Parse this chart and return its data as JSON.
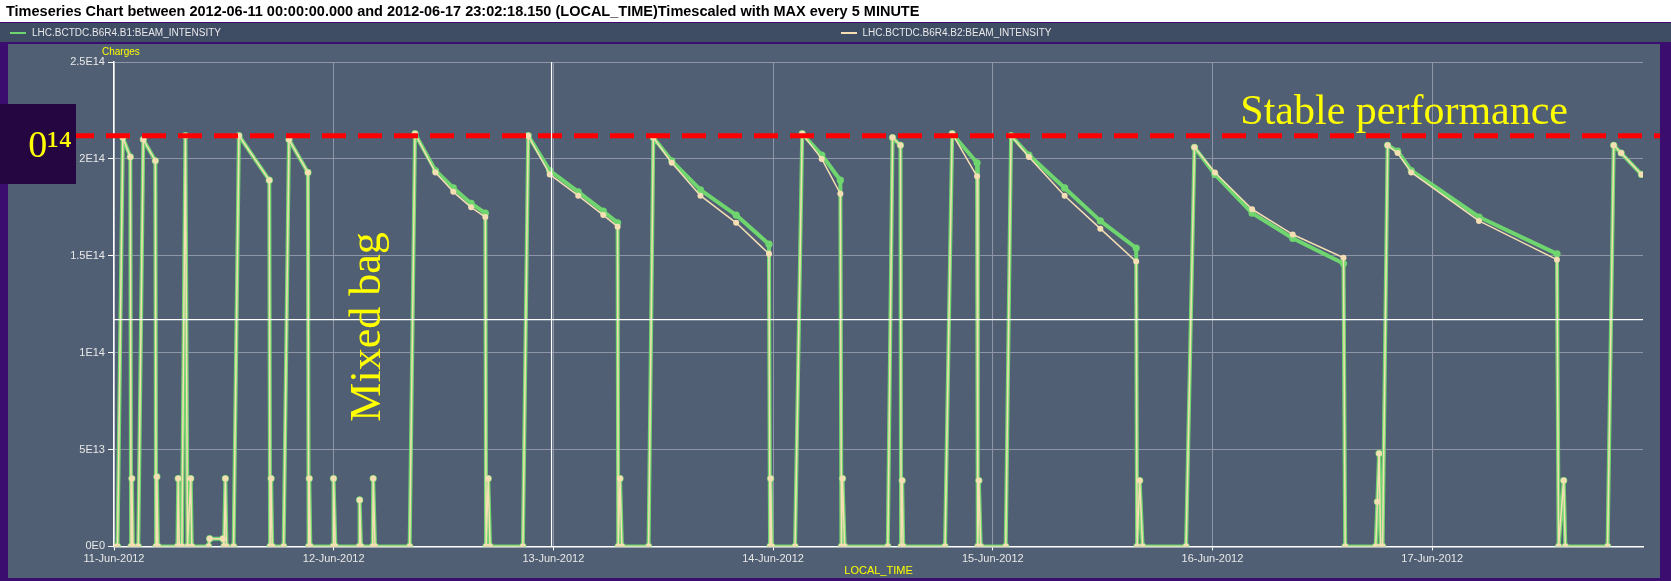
{
  "chart_data": {
    "type": "line",
    "title": "Timeseries Chart between 2012-06-11 00:00:00.000 and 2012-06-17 23:02:18.150 (LOCAL_TIME)Timescaled with MAX every 5 MINUTE",
    "xlabel": "LOCAL_TIME",
    "ylabel": "Charges",
    "x": [
      "2012-06-11T00:00",
      "2012-06-11T00:23",
      "2012-06-11T00:58",
      "2012-06-11T01:47",
      "2012-06-11T01:52",
      "2012-06-11T01:57",
      "2012-06-11T02:04",
      "2012-06-11T02:39",
      "2012-06-11T03:12",
      "2012-06-11T04:31",
      "2012-06-11T04:36",
      "2012-06-11T04:41",
      "2012-06-11T04:48",
      "2012-06-11T06:56",
      "2012-06-11T07:01",
      "2012-06-11T07:08",
      "2012-06-11T07:25",
      "2012-06-11T07:48",
      "2012-06-11T08:02",
      "2012-06-11T08:23",
      "2012-06-11T08:30",
      "2012-06-11T10:20",
      "2012-06-11T10:27",
      "2012-06-11T11:54",
      "2012-06-11T12:01",
      "2012-06-11T12:10",
      "2012-06-11T12:17",
      "2012-06-11T13:04",
      "2012-06-11T13:39",
      "2012-06-11T16:58",
      "2012-06-11T17:03",
      "2012-06-11T17:10",
      "2012-06-11T17:17",
      "2012-06-11T18:32",
      "2012-06-11T19:07",
      "2012-06-11T21:11",
      "2012-06-11T21:16",
      "2012-06-11T21:20",
      "2012-06-11T21:27",
      "2012-06-11T23:56",
      "2012-06-11T23:59",
      "2012-06-12T00:11",
      "2012-06-12T02:47",
      "2012-06-12T02:50",
      "2012-06-12T02:59",
      "2012-06-12T04:16",
      "2012-06-12T04:19",
      "2012-06-12T04:31",
      "2012-06-12T08:18",
      "2012-06-12T08:53",
      "2012-06-12T11:07",
      "2012-06-12T13:04",
      "2012-06-12T15:01",
      "2012-06-12T16:34",
      "2012-06-12T16:39",
      "2012-06-12T16:53",
      "2012-06-12T17:05",
      "2012-06-12T20:40",
      "2012-06-12T21:15",
      "2012-06-12T23:36",
      "2012-06-13T02:43",
      "2012-06-13T05:27",
      "2012-06-13T07:01",
      "2012-06-13T07:05",
      "2012-06-13T07:17",
      "2012-06-13T07:29",
      "2012-06-13T10:24",
      "2012-06-13T10:55",
      "2012-06-13T12:56",
      "2012-06-13T16:04",
      "2012-06-13T19:58",
      "2012-06-13T23:33",
      "2012-06-13T23:40",
      "2012-06-13T23:44",
      "2012-06-13T23:52",
      "2012-06-14T02:24",
      "2012-06-14T03:11",
      "2012-06-14T05:19",
      "2012-06-14T07:21",
      "2012-06-14T07:28",
      "2012-06-14T07:35",
      "2012-06-14T07:49",
      "2012-06-14T12:32",
      "2012-06-14T13:03",
      "2012-06-14T13:55",
      "2012-06-14T13:59",
      "2012-06-14T14:06",
      "2012-06-14T14:13",
      "2012-06-14T18:47",
      "2012-06-14T19:34",
      "2012-06-14T22:17",
      "2012-06-14T22:22",
      "2012-06-14T22:29",
      "2012-06-14T22:41",
      "2012-06-15T01:25",
      "2012-06-15T02:00",
      "2012-06-15T03:57",
      "2012-06-15T07:51",
      "2012-06-15T11:45",
      "2012-06-15T15:40",
      "2012-06-15T15:46",
      "2012-06-15T16:03",
      "2012-06-15T16:22",
      "2012-06-15T21:07",
      "2012-06-15T22:02",
      "2012-06-16T00:16",
      "2012-06-16T04:20",
      "2012-06-16T08:46",
      "2012-06-16T14:19",
      "2012-06-16T14:30",
      "2012-06-16T17:50",
      "2012-06-16T18:01",
      "2012-06-16T18:12",
      "2012-06-16T18:23",
      "2012-06-16T18:35",
      "2012-06-16T19:08",
      "2012-06-16T20:14",
      "2012-06-16T21:43",
      "2012-06-17T05:07",
      "2012-06-17T13:38",
      "2012-06-17T13:49",
      "2012-06-17T14:22",
      "2012-06-17T14:33",
      "2012-06-17T19:10",
      "2012-06-17T19:50",
      "2012-06-17T20:39",
      "2012-06-17T22:52"
    ],
    "series": [
      {
        "name": "LHC.BCTDC.B6R4.B1:BEAM_INTENSITY",
        "color": "#6fd66f",
        "values": [
          0,
          0,
          211000000000000.0,
          201000000000000.0,
          0,
          35000000000000.0,
          0,
          0,
          210000000000000.0,
          199000000000000.0,
          0,
          36000000000000.0,
          0,
          0,
          35000000000000.0,
          0,
          0,
          212000000000000.0,
          0,
          35000000000000.0,
          0,
          0,
          4000000000000.0,
          4000000000000.0,
          0,
          35000000000000.0,
          0,
          0,
          212000000000000.0,
          189000000000000.0,
          0,
          35000000000000.0,
          0,
          0,
          210000000000000.0,
          193000000000000.0,
          0,
          35000000000000.0,
          0,
          0,
          35000000000000.0,
          0,
          0,
          24000000000000.0,
          0,
          0,
          35000000000000.0,
          0,
          0,
          213000000000000.0,
          194000000000000.0,
          185000000000000.0,
          177000000000000.0,
          172000000000000.0,
          0,
          35000000000000.0,
          0,
          0,
          212000000000000.0,
          194000000000000.0,
          183000000000000.0,
          173000000000000.0,
          167000000000000.0,
          0,
          35000000000000.0,
          0,
          0,
          211000000000000.0,
          199000000000000.0,
          184000000000000.0,
          171000000000000.0,
          156000000000000.0,
          0,
          35000000000000.0,
          0,
          0,
          213000000000000.0,
          202000000000000.0,
          189000000000000.0,
          0,
          35000000000000.0,
          0,
          0,
          211000000000000.0,
          207000000000000.0,
          0,
          34000000000000.0,
          0,
          0,
          213000000000000.0,
          198000000000000.0,
          0,
          34000000000000.0,
          0,
          0,
          212000000000000.0,
          202000000000000.0,
          185000000000000.0,
          168000000000000.0,
          154000000000000.0,
          0,
          34000000000000.0,
          0,
          0,
          206000000000000.0,
          192000000000000.0,
          172000000000000.0,
          159000000000000.0,
          146000000000000.0,
          0,
          0,
          23000000000000.0,
          48000000000000.0,
          0,
          0,
          207000000000000.0,
          204000000000000.0,
          194000000000000.0,
          170000000000000.0,
          151000000000000.0,
          0,
          34000000000000.0,
          0,
          0,
          207000000000000.0,
          203000000000000.0,
          192000000000000.0
        ]
      },
      {
        "name": "LHC.BCTDC.B6R4.B2:BEAM_INTENSITY",
        "color": "#f5deb3",
        "values": [
          0,
          0,
          211000000000000.0,
          201000000000000.0,
          0,
          35000000000000.0,
          0,
          0,
          210000000000000.0,
          199000000000000.0,
          0,
          36000000000000.0,
          0,
          0,
          35000000000000.0,
          0,
          0,
          212000000000000.0,
          0,
          35000000000000.0,
          0,
          0,
          4000000000000.0,
          4000000000000.0,
          0,
          35000000000000.0,
          0,
          0,
          212000000000000.0,
          189000000000000.0,
          0,
          35000000000000.0,
          0,
          0,
          210000000000000.0,
          193000000000000.0,
          0,
          35000000000000.0,
          0,
          0,
          35000000000000.0,
          0,
          0,
          24000000000000.0,
          0,
          0,
          35000000000000.0,
          0,
          0,
          213000000000000.0,
          193000000000000.0,
          183000000000000.0,
          175000000000000.0,
          170000000000000.0,
          0,
          35000000000000.0,
          0,
          0,
          212000000000000.0,
          192000000000000.0,
          181000000000000.0,
          171000000000000.0,
          165000000000000.0,
          0,
          35000000000000.0,
          0,
          0,
          211000000000000.0,
          198000000000000.0,
          181000000000000.0,
          167000000000000.0,
          151000000000000.0,
          0,
          35000000000000.0,
          0,
          0,
          213000000000000.0,
          200000000000000.0,
          182000000000000.0,
          0,
          35000000000000.0,
          0,
          0,
          211000000000000.0,
          207000000000000.0,
          0,
          34000000000000.0,
          0,
          0,
          213000000000000.0,
          191000000000000.0,
          0,
          34000000000000.0,
          0,
          0,
          212000000000000.0,
          201000000000000.0,
          181000000000000.0,
          164000000000000.0,
          147000000000000.0,
          0,
          34000000000000.0,
          0,
          0,
          206000000000000.0,
          193000000000000.0,
          174000000000000.0,
          161000000000000.0,
          149000000000000.0,
          0,
          0,
          23000000000000.0,
          48000000000000.0,
          0,
          0,
          207000000000000.0,
          203000000000000.0,
          193000000000000.0,
          168000000000000.0,
          148000000000000.0,
          0,
          34000000000000.0,
          0,
          0,
          207000000000000.0,
          203000000000000.0,
          192000000000000.0
        ]
      }
    ],
    "xlim": [
      "2012-06-11T00:00",
      "2012-06-17T23:02"
    ],
    "xticks": [
      {
        "value": "2012-06-11",
        "label": "11-Jun-2012"
      },
      {
        "value": "2012-06-12",
        "label": "12-Jun-2012"
      },
      {
        "value": "2012-06-13",
        "label": "13-Jun-2012"
      },
      {
        "value": "2012-06-14",
        "label": "14-Jun-2012"
      },
      {
        "value": "2012-06-15",
        "label": "15-Jun-2012"
      },
      {
        "value": "2012-06-16",
        "label": "16-Jun-2012"
      },
      {
        "value": "2012-06-17",
        "label": "17-Jun-2012"
      }
    ],
    "ylim": [
      0,
      250000000000000.0
    ],
    "yticks": [
      {
        "value": 0,
        "label": "0E0"
      },
      {
        "value": 50000000000000.0,
        "label": "5E13"
      },
      {
        "value": 100000000000000.0,
        "label": "1E14"
      },
      {
        "value": 150000000000000.0,
        "label": "1.5E14"
      },
      {
        "value": 200000000000000.0,
        "label": "2E14"
      },
      {
        "value": 250000000000000.0,
        "label": "2.5E14"
      }
    ],
    "ref_lines": [
      {
        "axis": "y",
        "value": 212000000000000.0,
        "label": "Stable performance",
        "color": "#ff0000",
        "line_style": "dashed"
      },
      {
        "axis": "y",
        "value": 117000000000000.0,
        "color": "#ffffff"
      },
      {
        "axis": "x",
        "value": "2012-06-12T23:48",
        "color": "#ffffff"
      }
    ],
    "annotations": [
      "Mixed bag",
      "0¹⁴"
    ],
    "grid": true,
    "legend": "top",
    "marker": "circle",
    "line_style": "solid"
  }
}
